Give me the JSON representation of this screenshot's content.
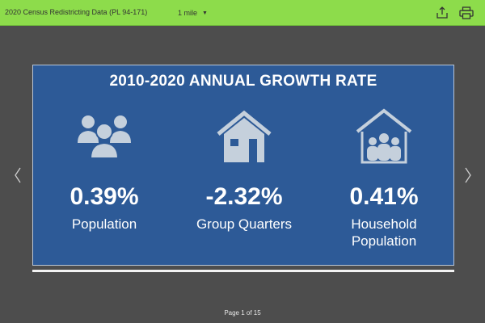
{
  "topbar": {
    "title": "2020 Census Redistricting Data (PL 94-171)",
    "radius": "1 mile",
    "icons": [
      "share-icon",
      "printer-icon",
      "chevron-down-icon"
    ]
  },
  "colors": {
    "topbar": "#8ddc4b",
    "slide": "#2d5a97",
    "background": "#4d4d4d",
    "icon": "#c5d0dc"
  },
  "slide": {
    "title": "2010-2020 ANNUAL GROWTH RATE",
    "stats": [
      {
        "icon": "people-icon",
        "value": "0.39%",
        "label": "Population"
      },
      {
        "icon": "house-icon",
        "value": "-2.32%",
        "label": "Group Quarters"
      },
      {
        "icon": "family-house-icon",
        "value": "0.41%",
        "label_line1": "Household",
        "label_line2": "Population"
      }
    ]
  },
  "pager": {
    "text": "Page 1 of 15"
  }
}
